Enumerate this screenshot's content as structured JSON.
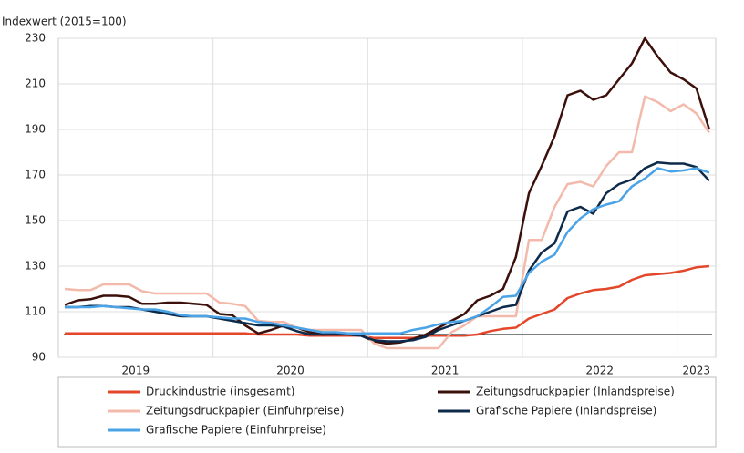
{
  "chart_data": {
    "type": "line",
    "ylabel": "Indexwert (2015=100)",
    "x": [
      2019.042,
      2019.125,
      2019.208,
      2019.292,
      2019.375,
      2019.458,
      2019.542,
      2019.625,
      2019.708,
      2019.792,
      2019.875,
      2019.958,
      2020.042,
      2020.125,
      2020.208,
      2020.292,
      2020.375,
      2020.458,
      2020.542,
      2020.625,
      2020.708,
      2020.792,
      2020.875,
      2020.958,
      2021.042,
      2021.125,
      2021.208,
      2021.292,
      2021.375,
      2021.458,
      2021.542,
      2021.625,
      2021.708,
      2021.792,
      2021.875,
      2021.958,
      2022.042,
      2022.125,
      2022.208,
      2022.292,
      2022.375,
      2022.458,
      2022.542,
      2022.625,
      2022.708,
      2022.792,
      2022.875,
      2022.958,
      2023.042,
      2023.125,
      2023.208
    ],
    "xlim": [
      2019,
      2023.25
    ],
    "xticks": [
      {
        "value": 2019.5,
        "label": "2019"
      },
      {
        "value": 2020.5,
        "label": "2020"
      },
      {
        "value": 2021.5,
        "label": "2021"
      },
      {
        "value": 2022.5,
        "label": "2022"
      },
      {
        "value": 2023.125,
        "label": "2023"
      }
    ],
    "xgrid": [
      2020,
      2021,
      2022,
      2023
    ],
    "ylim": [
      90,
      230
    ],
    "yticks": [
      90,
      110,
      130,
      150,
      170,
      190,
      210,
      230
    ],
    "grid": true,
    "reference_line": 100,
    "legend": "bottom",
    "series": [
      {
        "name": "Druckindustrie (insgesamt)",
        "color": "#e4462a",
        "values": [
          100.5,
          100.5,
          100.5,
          100.5,
          100.5,
          100.5,
          100.5,
          100.5,
          100.5,
          100.5,
          100.5,
          100.5,
          100.5,
          100.5,
          100.5,
          100,
          100,
          100,
          100,
          99.5,
          99.5,
          99.5,
          99.5,
          99.5,
          98.5,
          98.5,
          98.5,
          98.5,
          99.5,
          99.5,
          99.5,
          99.5,
          100,
          101.5,
          102.5,
          103,
          107,
          109,
          111,
          116,
          118,
          119.5,
          120,
          121,
          124,
          126,
          126.5,
          127,
          128,
          129.5,
          130
        ]
      },
      {
        "name": "Zeitungsdruckpapier (Inlandspreise)",
        "color": "#3b0f0a",
        "values": [
          113,
          115,
          115.5,
          117,
          117,
          116.5,
          113.5,
          113.5,
          114,
          114,
          113.5,
          113,
          109,
          108.5,
          104,
          100.5,
          102,
          104,
          103,
          101,
          100,
          100.5,
          100,
          99.5,
          97,
          96,
          96.5,
          98,
          100,
          103,
          106,
          109,
          115,
          117,
          120,
          134,
          162,
          174,
          187,
          205,
          207,
          203,
          205,
          212,
          219,
          230,
          222,
          215,
          212,
          208,
          190
        ]
      },
      {
        "name": "Zeitungsdruckpapier (Einfuhrpreise)",
        "color": "#f3b9aa",
        "values": [
          120,
          119.5,
          119.5,
          122,
          122,
          122,
          119,
          118,
          118,
          118,
          118,
          118,
          114,
          113.5,
          112.5,
          106,
          105.5,
          105.5,
          103,
          102,
          102,
          102,
          102,
          102,
          96,
          94,
          94,
          94,
          94,
          94,
          101,
          104,
          108,
          108,
          108,
          108,
          141.5,
          141.5,
          156,
          166,
          167,
          165,
          174,
          180,
          180,
          204.5,
          202,
          198,
          201,
          197,
          188.5
        ]
      },
      {
        "name": "Grafische Papiere (Inlandspreise)",
        "color": "#0d2a4a",
        "values": [
          112,
          112,
          112.5,
          112.5,
          112,
          112,
          111,
          110,
          109,
          108,
          108,
          108,
          107,
          106,
          105,
          104,
          104,
          103.5,
          101.5,
          100,
          100,
          100,
          100,
          99.5,
          97.5,
          97,
          97,
          97.5,
          99,
          102,
          104,
          106,
          108,
          110,
          112,
          113,
          128,
          136,
          140,
          154,
          156,
          153,
          162,
          166,
          168,
          173,
          175.5,
          175,
          175,
          173.5,
          167.5
        ]
      },
      {
        "name": "Grafische Papiere (Einfuhrpreise)",
        "color": "#4aa3e6",
        "values": [
          112,
          112,
          112,
          112.5,
          112,
          111.5,
          111,
          111,
          110,
          108.5,
          108,
          108,
          107.5,
          107,
          107,
          105.5,
          105,
          104,
          103,
          102,
          101,
          101,
          100.5,
          100.5,
          100.5,
          100.5,
          100.5,
          102,
          103,
          104.5,
          105.5,
          106,
          108,
          112,
          116.5,
          117,
          127,
          132,
          135,
          145,
          151,
          155,
          157,
          158.5,
          165,
          168.5,
          173,
          171.5,
          172,
          173,
          171
        ]
      }
    ]
  }
}
